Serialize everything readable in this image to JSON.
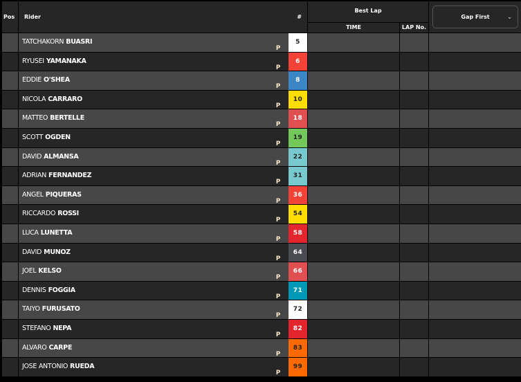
{
  "header": {
    "pos": "Pos",
    "rider": "Rider",
    "number": "#",
    "best_lap": "Best Lap",
    "time": "TIME",
    "lap_no": "LAP No.",
    "gap_select": "Gap First"
  },
  "rows": [
    {
      "first": "TATCHAKORN",
      "last": "BUASRI",
      "number": "5",
      "bg": "#ffffff",
      "fg": "#222222"
    },
    {
      "first": "RYUSEI",
      "last": "YAMANAKA",
      "number": "6",
      "bg": "#f44336",
      "fg": "#ffffff"
    },
    {
      "first": "EDDIE",
      "last": "O'SHEA",
      "number": "8",
      "bg": "#3b86c4",
      "fg": "#ffffff"
    },
    {
      "first": "NICOLA",
      "last": "CARRARO",
      "number": "10",
      "bg": "#ffdd00",
      "fg": "#222222"
    },
    {
      "first": "MATTEO",
      "last": "BERTELLE",
      "number": "18",
      "bg": "#e05050",
      "fg": "#ffffff"
    },
    {
      "first": "SCOTT",
      "last": "OGDEN",
      "number": "19",
      "bg": "#74c75a",
      "fg": "#222222"
    },
    {
      "first": "DAVID",
      "last": "ALMANSA",
      "number": "22",
      "bg": "#78c8d0",
      "fg": "#222222"
    },
    {
      "first": "ADRIAN",
      "last": "FERNANDEZ",
      "number": "31",
      "bg": "#78c8d0",
      "fg": "#222222"
    },
    {
      "first": "ANGEL",
      "last": "PIQUERAS",
      "number": "36",
      "bg": "#f44336",
      "fg": "#ffffff"
    },
    {
      "first": "RICCARDO",
      "last": "ROSSI",
      "number": "54",
      "bg": "#ffdd00",
      "fg": "#222222"
    },
    {
      "first": "LUCA",
      "last": "LUNETTA",
      "number": "58",
      "bg": "#e3262d",
      "fg": "#ffffff"
    },
    {
      "first": "DAVID",
      "last": "MUNOZ",
      "number": "64",
      "bg": "#4a4a52",
      "fg": "#ffffff"
    },
    {
      "first": "JOEL",
      "last": "KELSO",
      "number": "66",
      "bg": "#e05050",
      "fg": "#ffffff"
    },
    {
      "first": "DENNIS",
      "last": "FOGGIA",
      "number": "71",
      "bg": "#0099b5",
      "fg": "#ffffff"
    },
    {
      "first": "TAIYO",
      "last": "FURUSATO",
      "number": "72",
      "bg": "#ffffff",
      "fg": "#222222"
    },
    {
      "first": "STEFANO",
      "last": "NEPA",
      "number": "82",
      "bg": "#e3262d",
      "fg": "#ffffff"
    },
    {
      "first": "ALVARO",
      "last": "CARPE",
      "number": "83",
      "bg": "#ff6a00",
      "fg": "#222222"
    },
    {
      "first": "JOSE ANTONIO",
      "last": "RUEDA",
      "number": "99",
      "bg": "#ff6a00",
      "fg": "#222222"
    }
  ],
  "tyre_icon": "pirelli-p-icon",
  "tyre_label": "P"
}
